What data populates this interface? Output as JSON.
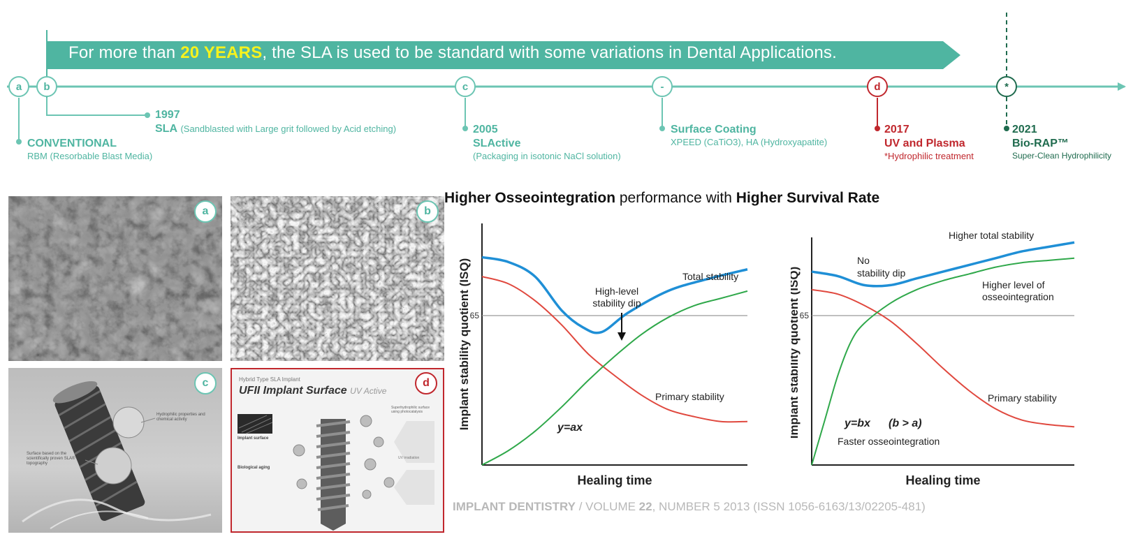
{
  "banner": {
    "pre": "For more than ",
    "highlight": "20 YEARS",
    "post": ", the SLA is used to be standard with some variations in Dental Applications."
  },
  "timeline": {
    "nodes": [
      {
        "letter": "a",
        "color": "#6cc5b3"
      },
      {
        "letter": "b",
        "color": "#6cc5b3"
      },
      {
        "letter": "c",
        "color": "#6cc5b3"
      },
      {
        "letter": "-",
        "color": "#6cc5b3"
      },
      {
        "letter": "d",
        "color": "#c0272d"
      },
      {
        "letter": "*",
        "color": "#1f6b4e"
      }
    ],
    "items": [
      {
        "year": "",
        "name": "CONVENTIONAL",
        "desc": "RBM (Resorbable Blast Media)"
      },
      {
        "year": "1997",
        "name": "SLA",
        "desc": "(Sandblasted with Large grit followed by Acid etching)"
      },
      {
        "year": "2005",
        "name": "SLActive",
        "desc": "(Packaging in isotonic NaCl solution)"
      },
      {
        "year": "",
        "name": "Surface Coating",
        "desc": "XPEED (CaTiO3), HA (Hydroxyapatite)"
      },
      {
        "year": "2017",
        "name": "UV and Plasma",
        "desc": "*Hydrophilic treatment"
      },
      {
        "year": "2021",
        "name": "Bio-RAP™",
        "desc": "Super-Clean Hydrophilicity"
      }
    ]
  },
  "photos": {
    "a": {
      "badge": "a"
    },
    "b": {
      "badge": "b"
    },
    "c": {
      "badge": "c",
      "callouts": [
        "Hydrophilic properties and chemical activity",
        "Surface based on the scientifically proven SLA® topography"
      ]
    },
    "d": {
      "badge": "d",
      "kicker": "Hybrid Type SLA Implant",
      "title": "UFII Implant Surface",
      "subtitle": "UV Active",
      "side_heads": [
        "Implant surface",
        "Biological aging"
      ],
      "right_notes": [
        "Superhydrophilic surface using photocatalysis",
        "UV irradiation"
      ]
    }
  },
  "performance": {
    "title_b1": "Higher Osseointegration",
    "title_mid": " performance with ",
    "title_b2": "Higher Survival Rate"
  },
  "chart_data": [
    {
      "type": "line",
      "title": "",
      "xlabel": "Healing time",
      "ylabel": "Implant stability quotient (ISQ)",
      "reference_line": {
        "y": 65,
        "label": "65"
      },
      "series": [
        {
          "name": "Total stability",
          "color": "#1f8fd6",
          "points": [
            [
              0,
              0.86
            ],
            [
              0.1,
              0.84
            ],
            [
              0.2,
              0.78
            ],
            [
              0.3,
              0.64
            ],
            [
              0.38,
              0.57
            ],
            [
              0.45,
              0.55
            ],
            [
              0.55,
              0.63
            ],
            [
              0.7,
              0.72
            ],
            [
              0.85,
              0.77
            ],
            [
              1,
              0.81
            ]
          ]
        },
        {
          "name": "Primary stability",
          "color": "#e0483e",
          "points": [
            [
              0,
              0.78
            ],
            [
              0.1,
              0.75
            ],
            [
              0.2,
              0.68
            ],
            [
              0.3,
              0.58
            ],
            [
              0.4,
              0.46
            ],
            [
              0.5,
              0.37
            ],
            [
              0.6,
              0.29
            ],
            [
              0.7,
              0.23
            ],
            [
              0.8,
              0.2
            ],
            [
              0.9,
              0.18
            ],
            [
              1,
              0.18
            ]
          ]
        },
        {
          "name": "y=ax",
          "color": "#2fa84a",
          "points": [
            [
              0,
              0.0
            ],
            [
              0.1,
              0.06
            ],
            [
              0.2,
              0.14
            ],
            [
              0.3,
              0.24
            ],
            [
              0.4,
              0.35
            ],
            [
              0.5,
              0.45
            ],
            [
              0.6,
              0.54
            ],
            [
              0.7,
              0.61
            ],
            [
              0.8,
              0.66
            ],
            [
              0.9,
              0.69
            ],
            [
              1,
              0.72
            ]
          ]
        }
      ],
      "annotations": [
        "High-level",
        "stability dip",
        "Total stability",
        "Primary stability",
        "y=ax"
      ]
    },
    {
      "type": "line",
      "title": "",
      "xlabel": "Healing time",
      "ylabel": "Implant stability quotient (ISQ)",
      "reference_line": {
        "y": 65,
        "label": "65"
      },
      "series": [
        {
          "name": "Higher total stability",
          "color": "#1f8fd6",
          "points": [
            [
              0,
              0.86
            ],
            [
              0.1,
              0.84
            ],
            [
              0.2,
              0.8
            ],
            [
              0.3,
              0.8
            ],
            [
              0.4,
              0.83
            ],
            [
              0.5,
              0.86
            ],
            [
              0.6,
              0.89
            ],
            [
              0.7,
              0.92
            ],
            [
              0.8,
              0.95
            ],
            [
              0.9,
              0.97
            ],
            [
              1,
              0.99
            ]
          ]
        },
        {
          "name": "Primary stability",
          "color": "#e0483e",
          "points": [
            [
              0,
              0.78
            ],
            [
              0.1,
              0.76
            ],
            [
              0.2,
              0.71
            ],
            [
              0.3,
              0.64
            ],
            [
              0.4,
              0.54
            ],
            [
              0.5,
              0.43
            ],
            [
              0.6,
              0.33
            ],
            [
              0.7,
              0.25
            ],
            [
              0.8,
              0.2
            ],
            [
              0.9,
              0.18
            ],
            [
              1,
              0.17
            ]
          ]
        },
        {
          "name": "y=bx (b > a)",
          "color": "#2fa84a",
          "points": [
            [
              0,
              0.0
            ],
            [
              0.05,
              0.2
            ],
            [
              0.1,
              0.4
            ],
            [
              0.15,
              0.55
            ],
            [
              0.2,
              0.63
            ],
            [
              0.3,
              0.72
            ],
            [
              0.4,
              0.78
            ],
            [
              0.5,
              0.82
            ],
            [
              0.6,
              0.85
            ],
            [
              0.7,
              0.88
            ],
            [
              0.8,
              0.9
            ],
            [
              0.9,
              0.91
            ],
            [
              1,
              0.92
            ]
          ]
        }
      ],
      "annotations": [
        "No",
        "stability dip",
        "Higher  total stability",
        "Higher level of",
        "osseointegration",
        "Primary stability",
        "y=bx",
        "(b > a)",
        "Faster osseointegration"
      ]
    }
  ],
  "citation": {
    "journal": "IMPLANT DENTISTRY",
    "sep": " / VOLUME ",
    "volume": "22",
    "rest": ", NUMBER 5 2013 (ISSN 1056-6163/13/02205-481)"
  }
}
